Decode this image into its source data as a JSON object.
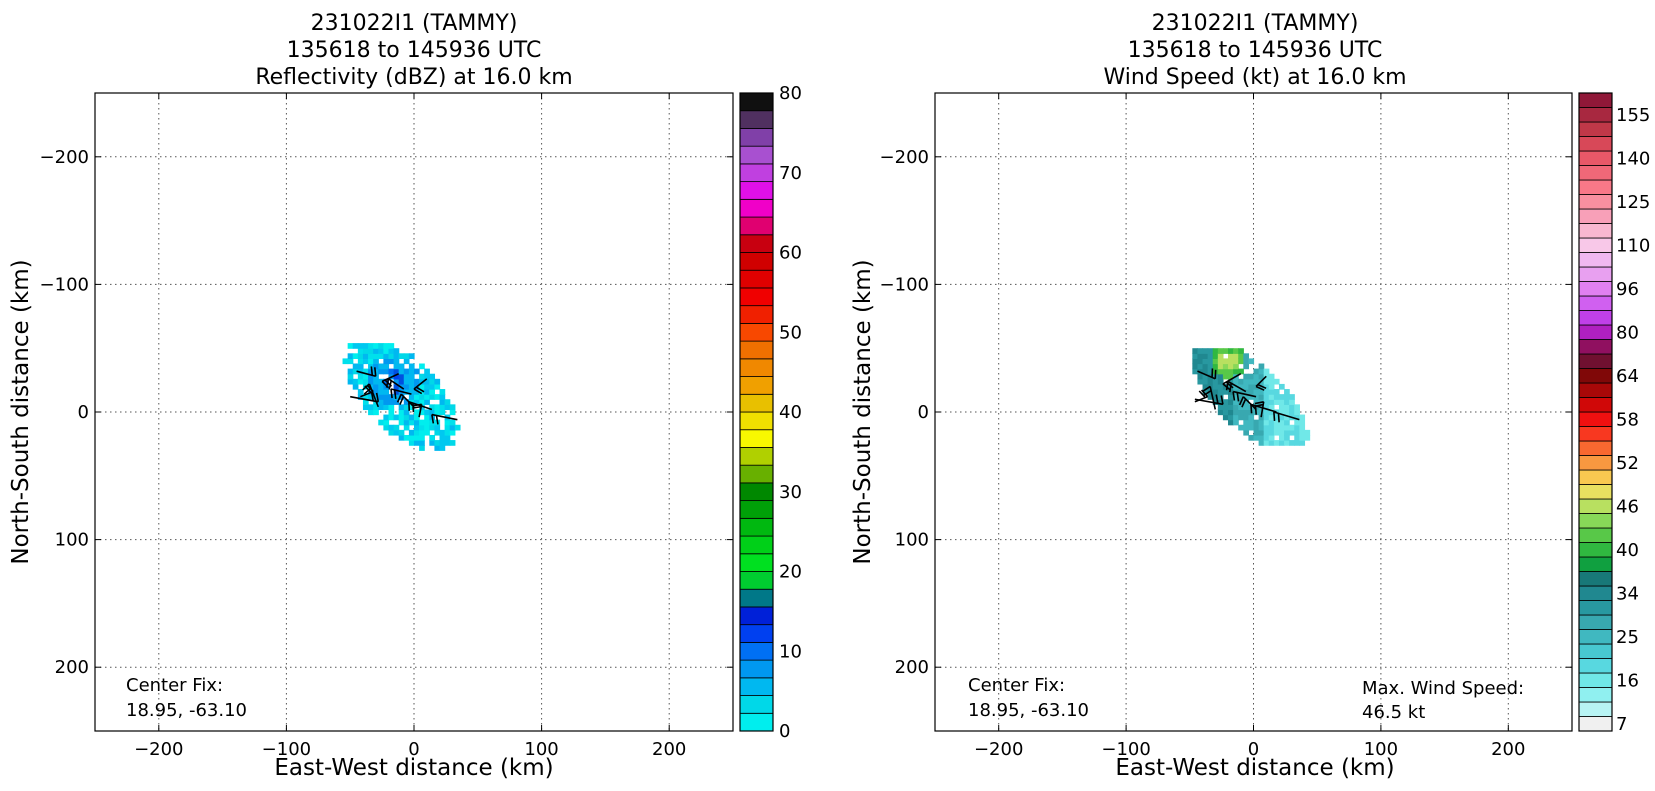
{
  "panels": [
    {
      "title_line1": "231022I1 (TAMMY)",
      "title_line2": "135618 to 145936 UTC",
      "title_line3": "Reflectivity (dBZ) at 16.0 km",
      "center_fix_label": "Center Fix:",
      "center_fix_value": "18.95, -63.10",
      "colorbar_ticks": [
        "0",
        "10",
        "20",
        "30",
        "40",
        "50",
        "60",
        "70",
        "80"
      ]
    },
    {
      "title_line1": "231022I1 (TAMMY)",
      "title_line2": "135618 to 145936 UTC",
      "title_line3": "Wind Speed (kt) at 16.0 km",
      "center_fix_label": "Center Fix:",
      "center_fix_value": "18.95, -63.10",
      "max_wind_label": "Max. Wind Speed:",
      "max_wind_value": "46.5 kt",
      "colorbar_ticks": [
        "7",
        "16",
        "25",
        "34",
        "40",
        "46",
        "52",
        "58",
        "64",
        "80",
        "96",
        "110",
        "125",
        "140",
        "155"
      ]
    }
  ],
  "chart_data": [
    {
      "type": "heatmap",
      "title": "231022I1 (TAMMY) 135618 to 145936 UTC Reflectivity (dBZ) at 16.0 km",
      "xlabel": "East-West distance (km)",
      "ylabel": "North-South distance (km)",
      "xlim": [
        -250,
        250
      ],
      "ylim": [
        -250,
        250
      ],
      "xticks": [
        "−200",
        "−100",
        "0",
        "100",
        "200"
      ],
      "yticks": [
        "−200",
        "−100",
        "0",
        "100",
        "200"
      ],
      "grid": true,
      "colorbar": {
        "min": 0,
        "max": 80,
        "step": 2.5,
        "colors": [
          "#00eeee",
          "#00d8e8",
          "#00b8f0",
          "#0098f0",
          "#0070f4",
          "#0040f0",
          "#0020d8",
          "#007888",
          "#00cc30",
          "#00e020",
          "#00d018",
          "#00b810",
          "#00a008",
          "#008800",
          "#68b000",
          "#b0d000",
          "#f8f800",
          "#f0e000",
          "#e8c000",
          "#f0a000",
          "#f08800",
          "#f07000",
          "#f84800",
          "#f02000",
          "#f00000",
          "#e00000",
          "#d00000",
          "#c80010",
          "#e00070",
          "#f000c8",
          "#e010e8",
          "#c040e0",
          "#a850d0",
          "#8040a8",
          "#503060",
          "#101010"
        ]
      },
      "echo_region": {
        "x_range": [
          -55,
          35
        ],
        "y_range": [
          -32,
          52
        ]
      },
      "max_reflectivity_dbz_approx": 15
    },
    {
      "type": "heatmap",
      "title": "231022I1 (TAMMY) 135618 to 145936 UTC Wind Speed (kt) at 16.0 km",
      "xlabel": "East-West distance (km)",
      "ylabel": "North-South distance (km)",
      "xlim": [
        -250,
        250
      ],
      "ylim": [
        -250,
        250
      ],
      "xticks": [
        "−200",
        "−100",
        "0",
        "100",
        "200"
      ],
      "yticks": [
        "−200",
        "−100",
        "0",
        "100",
        "200"
      ],
      "grid": true,
      "colorbar": {
        "labels": [
          7,
          16,
          25,
          34,
          40,
          46,
          52,
          58,
          64,
          80,
          96,
          110,
          125,
          140,
          155
        ],
        "colors": [
          "#f0f0f0",
          "#b8f4f4",
          "#90f0f0",
          "#70e8e8",
          "#58d8e0",
          "#48c8d0",
          "#40b8c0",
          "#38a8b0",
          "#2898a0",
          "#208890",
          "#187878",
          "#10a040",
          "#30b840",
          "#58c848",
          "#88d858",
          "#b8e060",
          "#e8e060",
          "#f8c850",
          "#f89840",
          "#f86830",
          "#f83820",
          "#f01010",
          "#d00808",
          "#a80808",
          "#800808",
          "#701030",
          "#901060",
          "#b020c0",
          "#c040e8",
          "#d060f0",
          "#e080f0",
          "#e8a0f0",
          "#f0b8f0",
          "#f8c8e8",
          "#f8b8d0",
          "#f8a0b8",
          "#f890a0",
          "#f87888",
          "#f06878",
          "#e85868",
          "#d84858",
          "#c03848",
          "#a82840",
          "#901838"
        ]
      },
      "echo_region": {
        "x_range": [
          -55,
          40
        ],
        "y_range": [
          -25,
          48
        ]
      },
      "max_wind_speed_kt": 46.5
    }
  ]
}
